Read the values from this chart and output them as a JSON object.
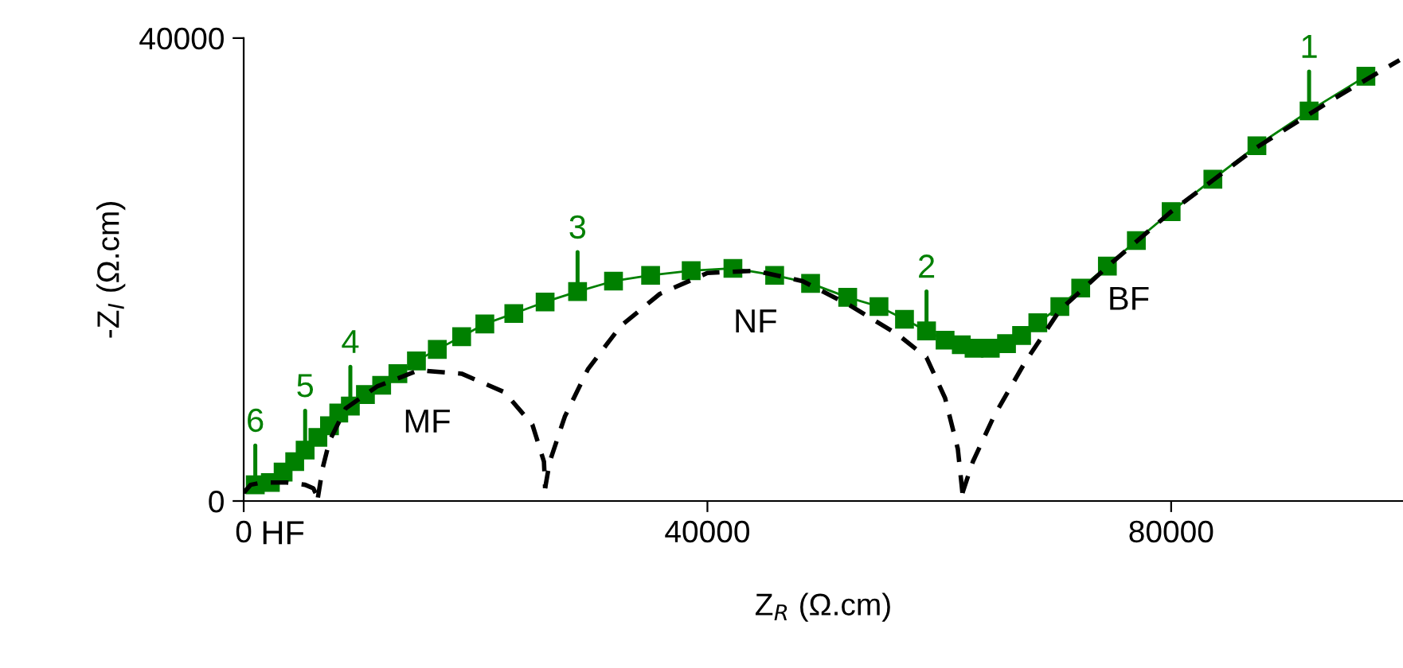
{
  "chart_data": {
    "type": "line",
    "xlabel": "Z$_{R}$ (Ω.cm)",
    "ylabel": "-Z$_{I}$ (Ω.cm)",
    "xlim": [
      0,
      100000
    ],
    "ylim": [
      0,
      40000
    ],
    "xticks": [
      0,
      40000,
      80000
    ],
    "yticks": [
      0,
      40000
    ],
    "grid": false,
    "legend": false,
    "series": [
      {
        "color": "#008000",
        "marker": "square",
        "line_style": "solid",
        "x": [
          1000,
          2300,
          3400,
          4400,
          5300,
          6400,
          7400,
          8200,
          9200,
          10500,
          11900,
          13300,
          14900,
          16700,
          18800,
          20800,
          23300,
          26000,
          28800,
          31900,
          35100,
          38600,
          42200,
          45800,
          48900,
          52100,
          54800,
          57000,
          58900,
          60500,
          61900,
          63000,
          64400,
          65800,
          67100,
          68500,
          70400,
          72200,
          74500,
          77000,
          80000,
          83600,
          87400,
          91900,
          96800
        ],
        "values": [
          1400,
          1600,
          2500,
          3400,
          4400,
          5500,
          6500,
          7600,
          8200,
          9200,
          10000,
          11000,
          12100,
          13100,
          14200,
          15300,
          16200,
          17200,
          18100,
          19000,
          19500,
          19900,
          20100,
          19500,
          18800,
          17600,
          16800,
          15700,
          14700,
          13900,
          13500,
          13200,
          13200,
          13600,
          14300,
          15400,
          16800,
          18400,
          20300,
          22500,
          25000,
          27800,
          30700,
          33700,
          36700
        ]
      },
      {
        "name": "HF",
        "color": "#000000",
        "marker": "none",
        "line_style": "dashed",
        "x": [
          0,
          600,
          1600,
          3700,
          5300,
          6000,
          6400
        ],
        "values": [
          700,
          1400,
          1600,
          1600,
          1400,
          1100,
          300
        ]
      },
      {
        "name": "MF",
        "color": "#000000",
        "marker": "none",
        "line_style": "dashed",
        "x": [
          6400,
          6800,
          7400,
          8800,
          11500,
          15100,
          18800,
          22500,
          24900,
          25900,
          26000
        ],
        "values": [
          300,
          2800,
          5200,
          8000,
          9900,
          11300,
          11000,
          9400,
          6600,
          3400,
          1100
        ]
      },
      {
        "name": "NF",
        "color": "#000000",
        "marker": "none",
        "line_style": "dashed",
        "x": [
          26000,
          26400,
          27700,
          29700,
          32500,
          35900,
          40000,
          44100,
          48200,
          52300,
          56400,
          58900,
          60500,
          61600,
          62000
        ],
        "values": [
          1100,
          3400,
          7300,
          11400,
          15100,
          17900,
          19700,
          19900,
          19000,
          16900,
          14400,
          12400,
          8900,
          4500,
          700
        ]
      },
      {
        "name": "BF",
        "color": "#000000",
        "marker": "none",
        "line_style": "dashed",
        "x": [
          62000,
          62900,
          64700,
          67400,
          70400,
          74900,
          80000,
          87300,
          94100,
          99700
        ],
        "values": [
          700,
          3400,
          7300,
          12000,
          16500,
          20600,
          25000,
          30500,
          34800,
          38100
        ]
      }
    ],
    "annotations": [
      {
        "text": "1",
        "x": 91900,
        "y": 33700
      },
      {
        "text": "2",
        "x": 58900,
        "y": 14700
      },
      {
        "text": "3",
        "x": 28800,
        "y": 18100
      },
      {
        "text": "4",
        "x": 9200,
        "y": 8200
      },
      {
        "text": "5",
        "x": 5300,
        "y": 4400
      },
      {
        "text": "6",
        "x": 1000,
        "y": 1400
      }
    ]
  }
}
